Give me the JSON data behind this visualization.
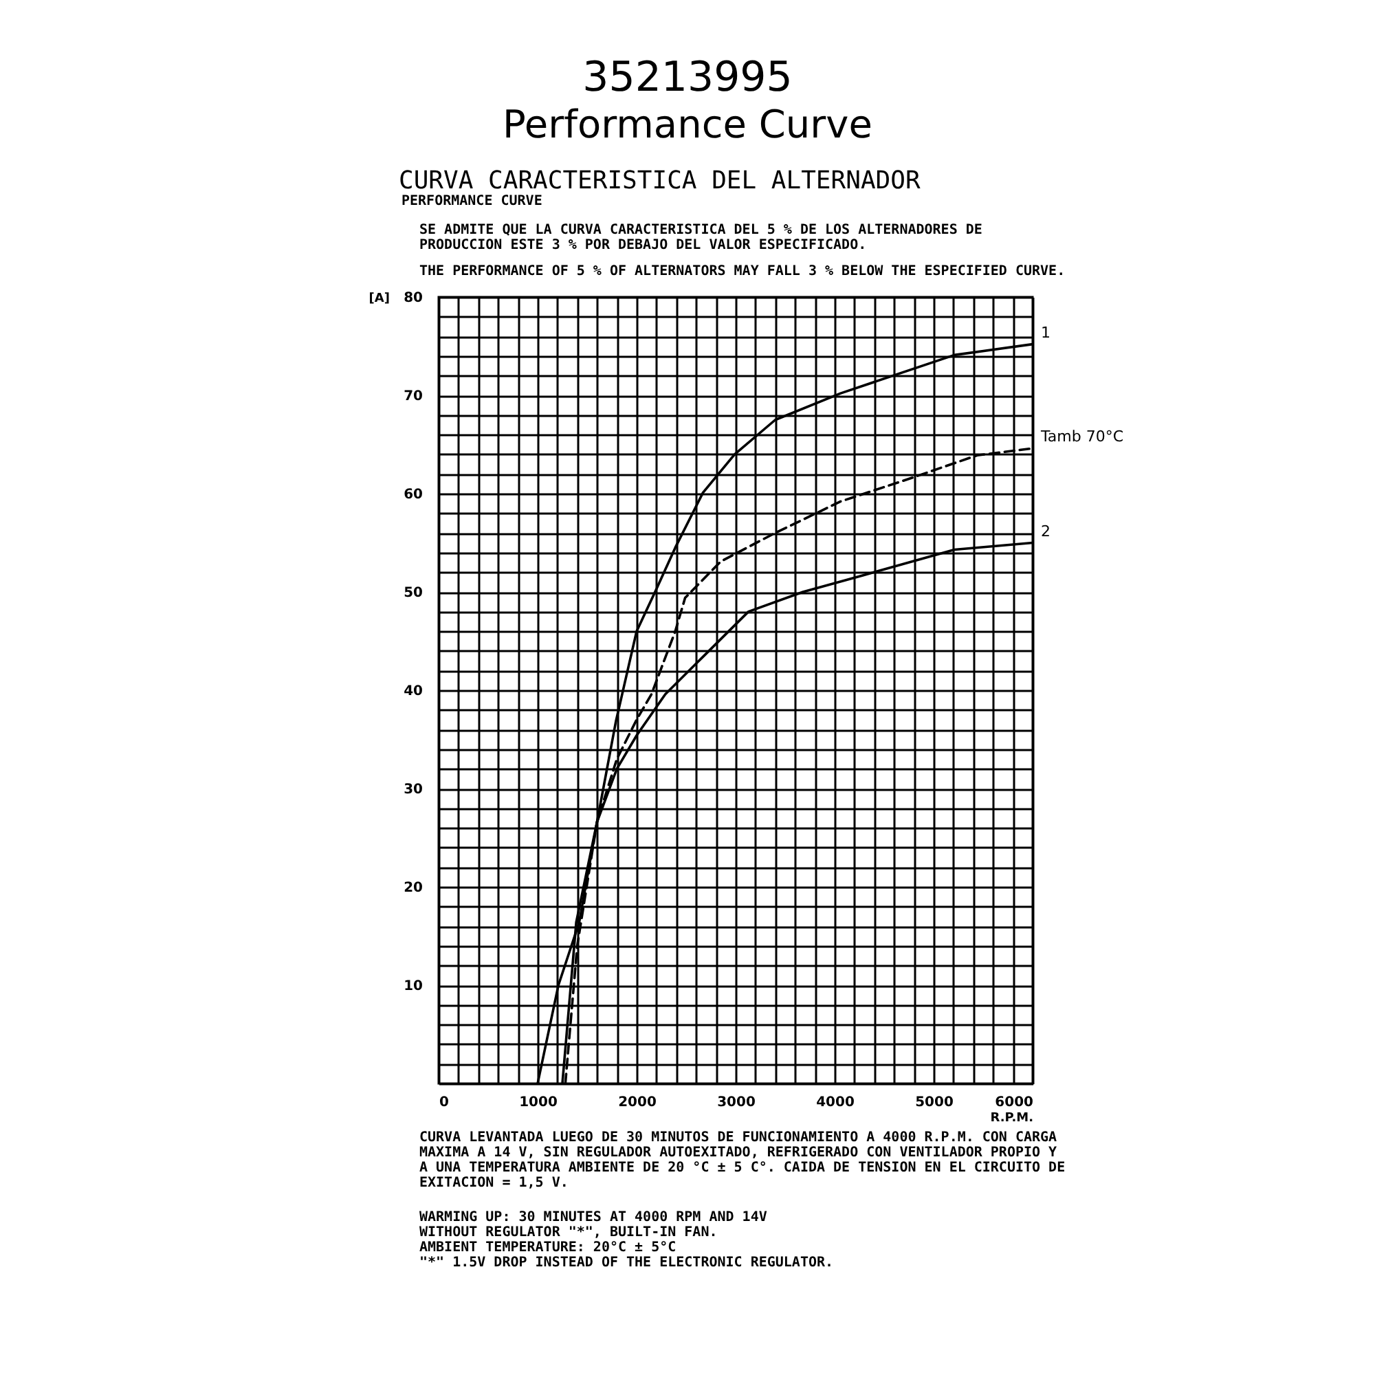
{
  "chart_data": {
    "type": "line",
    "title": "35213995",
    "subtitle": "Performance Curve",
    "annotations": [
      "CURVA CARACTERISTICA DEL ALTERNADOR",
      "PERFORMANCE CURVE",
      "SE ADMITE QUE LA CURVA CARACTERISTICA DEL 5 % DE LOS ALTERNADORES DE PRODUCCION ESTE 3 % POR DEBAJO DEL VALOR ESPECIFICADO.",
      "THE PERFORMANCE OF 5 % OF ALTERNATORS MAY FALL 3 % BELOW THE ESPECIFIED CURVE.",
      "CURVA LEVANTADA LUEGO DE 30 MINUTOS DE FUNCIONAMIENTO A 4000 R.P.M. CON CARGA MAXIMA A 14 V, SIN REGULADOR AUTOEXITADO, REFRIGERADO CON VENTILADOR PROPIO Y A UNA TEMPERATURA AMBIENTE DE 20 °C ± 5 C°. CAIDA DE TENSION EN EL CIRCUITO DE EXITACION = 1,5 V.",
      "WARMING UP: 30 MINUTES AT 4000 RPM AND 14V",
      "WITHOUT REGULATOR \"*\", BUILT-IN FAN.",
      "AMBIENT TEMPERATURE: 20°C ± 5°C",
      "\"*\" 1.5V DROP INSTEAD OF THE ELECTRONIC REGULATOR."
    ],
    "xlabel": "R.P.M.",
    "ylabel": "[A]",
    "xlim": [
      0,
      6000
    ],
    "ylim": [
      0,
      80
    ],
    "xticks": [
      0,
      {
        "value": 200,
        "label": null
      },
      {
        "value": 400,
        "label": null
      },
      {
        "value": 600,
        "label": null
      },
      {
        "value": 800,
        "label": null
      },
      1000,
      {
        "value": 1200,
        "label": null
      },
      {
        "value": 1400,
        "label": null
      },
      {
        "value": 1600,
        "label": null
      },
      {
        "value": 1800,
        "label": null
      },
      2000,
      {
        "value": 2200,
        "label": null
      },
      {
        "value": 2400,
        "label": null
      },
      {
        "value": 2600,
        "label": null
      },
      {
        "value": 2800,
        "label": null
      },
      3000,
      {
        "value": 3200,
        "label": null
      },
      {
        "value": 3400,
        "label": null
      },
      {
        "value": 3600,
        "label": null
      },
      {
        "value": 3800,
        "label": null
      },
      4000,
      {
        "value": 4200,
        "label": null
      },
      {
        "value": 4400,
        "label": null
      },
      {
        "value": 4600,
        "label": null
      },
      {
        "value": 4800,
        "label": null
      },
      5000,
      {
        "value": 5200,
        "label": null
      },
      {
        "value": 5400,
        "label": null
      },
      {
        "value": 5600,
        "label": null
      },
      {
        "value": 5800,
        "label": null
      },
      6000
    ],
    "yticks": [
      {
        "value": 0,
        "label": null
      },
      {
        "value": 2,
        "label": null
      },
      {
        "value": 4,
        "label": null
      },
      {
        "value": 6,
        "label": null
      },
      {
        "value": 8,
        "label": null
      },
      10,
      {
        "value": 12,
        "label": null
      },
      {
        "value": 14,
        "label": null
      },
      {
        "value": 16,
        "label": null
      },
      {
        "value": 18,
        "label": null
      },
      20,
      {
        "value": 22,
        "label": null
      },
      {
        "value": 24,
        "label": null
      },
      {
        "value": 26,
        "label": null
      },
      {
        "value": 28,
        "label": null
      },
      30,
      {
        "value": 32,
        "label": null
      },
      {
        "value": 34,
        "label": null
      },
      {
        "value": 36,
        "label": null
      },
      {
        "value": 38,
        "label": null
      },
      40,
      {
        "value": 42,
        "label": null
      },
      {
        "value": 44,
        "label": null
      },
      {
        "value": 46,
        "label": null
      },
      {
        "value": 48,
        "label": null
      },
      50,
      {
        "value": 52,
        "label": null
      },
      {
        "value": 54,
        "label": null
      },
      {
        "value": 56,
        "label": null
      },
      {
        "value": 58,
        "label": null
      },
      60,
      {
        "value": 62,
        "label": null
      },
      {
        "value": 64,
        "label": null
      },
      {
        "value": 66,
        "label": null
      },
      {
        "value": 68,
        "label": null
      },
      70,
      {
        "value": 72,
        "label": null
      },
      {
        "value": 74,
        "label": null
      },
      {
        "value": 76,
        "label": null
      },
      {
        "value": 78,
        "label": null
      },
      80
    ],
    "grid": true,
    "legend": false,
    "series": [
      {
        "name": "1",
        "color": "#000000",
        "line_style": "solid",
        "x": [
          1000,
          1210,
          1420,
          1600,
          1790,
          2000,
          2200,
          2390,
          2670,
          2990,
          3400,
          4060,
          5210,
          6000
        ],
        "values": [
          0,
          10,
          16.4,
          26.6,
          36.8,
          46,
          50.3,
          54.5,
          60.1,
          64,
          67.5,
          70.2,
          74.1,
          75.2
        ]
      },
      {
        "name": "Tamb 70°C",
        "color": "#000000",
        "line_style": "dashed",
        "x": [
          1280,
          1400,
          1600,
          1800,
          2000,
          2150,
          2390,
          2490,
          2850,
          3400,
          4060,
          4750,
          5440,
          6000
        ],
        "values": [
          0,
          14,
          26.6,
          33,
          37,
          39.6,
          46,
          49.4,
          53.1,
          56,
          59.2,
          61.5,
          63.9,
          64.6
        ]
      },
      {
        "name": "2",
        "color": "#000000",
        "line_style": "solid",
        "x": [
          1250,
          1390,
          1600,
          1800,
          2000,
          2290,
          2670,
          3130,
          3680,
          4290,
          5210,
          6000
        ],
        "values": [
          0,
          16.4,
          26.6,
          32,
          35.4,
          39.6,
          43.4,
          48,
          50,
          51.7,
          54.3,
          55
        ]
      }
    ]
  }
}
